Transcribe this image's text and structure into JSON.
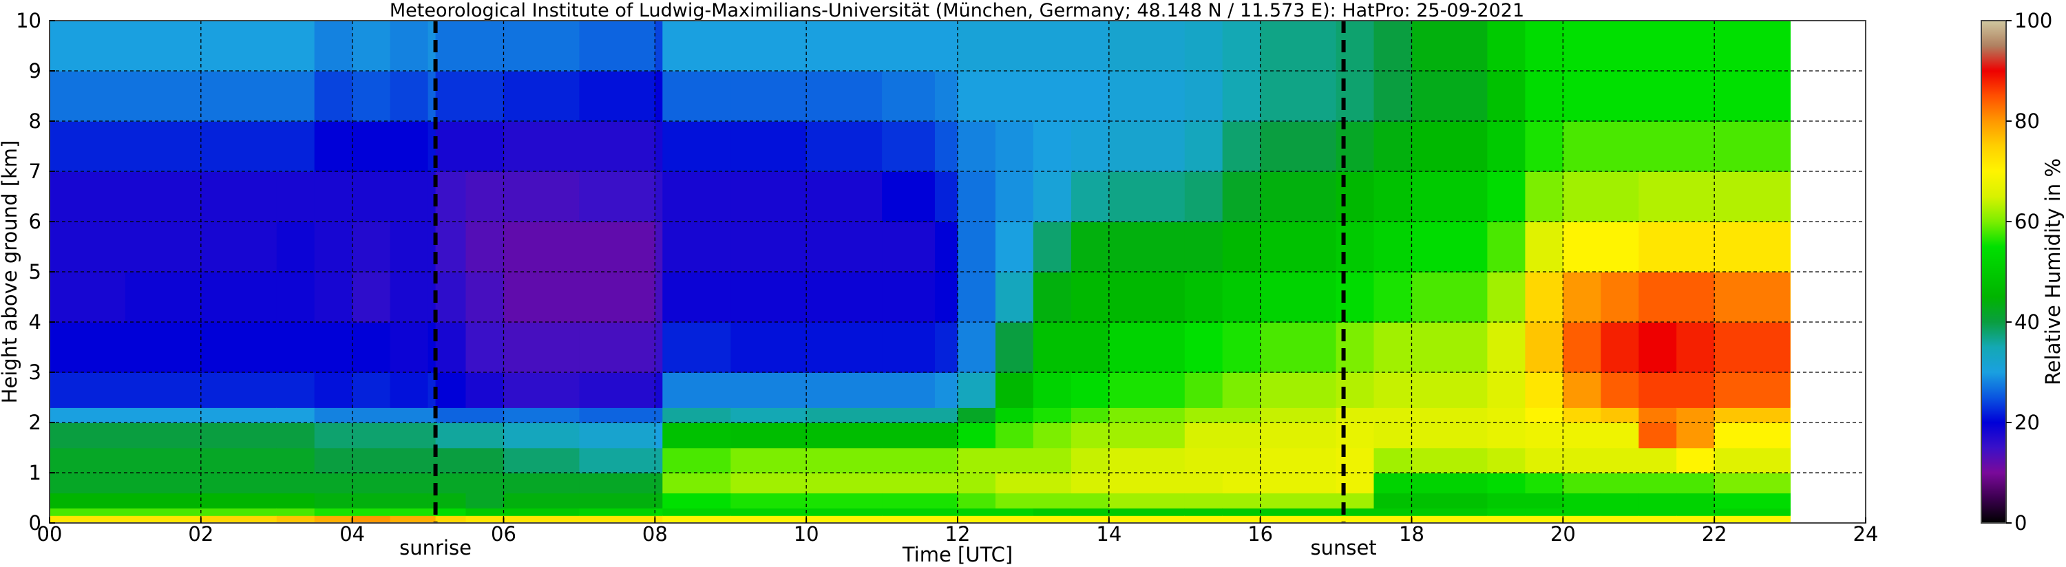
{
  "chart_data": {
    "type": "heatmap",
    "title": "Meteorological Institute of Ludwig-Maximilians-Universität (München, Germany; 48.148 N / 11.573 E):    HatPro: 25-09-2021",
    "xlabel": "Time [UTC]",
    "ylabel": "Height above ground [km]",
    "colorbar_label": "Relative Humidity in %",
    "xlim": [
      0,
      24
    ],
    "ylim": [
      0,
      10
    ],
    "clim": [
      0,
      100
    ],
    "data_extent_hours": [
      0,
      23
    ],
    "x_ticks": [
      "00",
      "02",
      "04",
      "06",
      "08",
      "10",
      "12",
      "14",
      "16",
      "18",
      "20",
      "22",
      "24"
    ],
    "y_ticks": [
      "0",
      "1",
      "2",
      "3",
      "4",
      "5",
      "6",
      "7",
      "8",
      "9",
      "10"
    ],
    "colorbar_ticks": [
      "0",
      "20",
      "40",
      "60",
      "80",
      "100"
    ],
    "grid": true,
    "markers": [
      {
        "label": "sunrise",
        "time": 5.1
      },
      {
        "label": "sunset",
        "time": 17.1
      }
    ],
    "colormap": [
      [
        0,
        "#000000"
      ],
      [
        5,
        "#3c0050"
      ],
      [
        10,
        "#7a0a9a"
      ],
      [
        15,
        "#3a10c8"
      ],
      [
        20,
        "#0000d8"
      ],
      [
        25,
        "#0a55e0"
      ],
      [
        30,
        "#1aa0e0"
      ],
      [
        35,
        "#14a8b4"
      ],
      [
        40,
        "#0a9e40"
      ],
      [
        45,
        "#00b400"
      ],
      [
        55,
        "#00e000"
      ],
      [
        60,
        "#7cee00"
      ],
      [
        65,
        "#d8f200"
      ],
      [
        70,
        "#fff400"
      ],
      [
        75,
        "#ffd000"
      ],
      [
        80,
        "#ff9800"
      ],
      [
        85,
        "#ff5000"
      ],
      [
        90,
        "#ee0000"
      ],
      [
        95,
        "#b08060"
      ],
      [
        100,
        "#d0c8a0"
      ]
    ],
    "time_hours": [
      0,
      1,
      2,
      3,
      3.5,
      4,
      4.5,
      5,
      5.1,
      5.5,
      6,
      7,
      8,
      8.1,
      9,
      10,
      11,
      11.7,
      12,
      12.5,
      13,
      13.5,
      14,
      15,
      15.5,
      16,
      17,
      17.5,
      18,
      19,
      19.5,
      20,
      20.5,
      21,
      21.5,
      22,
      23
    ],
    "height_km": [
      0,
      0.15,
      0.3,
      0.6,
      1,
      1.5,
      2,
      2.3,
      3,
      4,
      5,
      6,
      7,
      8,
      9,
      10
    ],
    "humidity_percent": [
      [
        72,
        58,
        45,
        42,
        42,
        40,
        30,
        22,
        20,
        18,
        18,
        18,
        22,
        27,
        30,
        32
      ],
      [
        72,
        58,
        45,
        42,
        42,
        40,
        30,
        22,
        20,
        19,
        18,
        18,
        22,
        27,
        30,
        32
      ],
      [
        74,
        58,
        45,
        42,
        42,
        40,
        30,
        22,
        20,
        19,
        18,
        18,
        22,
        27,
        30,
        32
      ],
      [
        76,
        58,
        45,
        42,
        42,
        40,
        30,
        22,
        20,
        19,
        19,
        18,
        22,
        27,
        30,
        32
      ],
      [
        78,
        56,
        44,
        42,
        40,
        38,
        28,
        21,
        20,
        18,
        18,
        18,
        20,
        24,
        28,
        31
      ],
      [
        80,
        56,
        44,
        42,
        40,
        38,
        28,
        22,
        20,
        16,
        17,
        18,
        20,
        25,
        29,
        31
      ],
      [
        78,
        56,
        44,
        42,
        40,
        38,
        28,
        21,
        19,
        18,
        18,
        18,
        20,
        24,
        28,
        31
      ],
      [
        78,
        56,
        44,
        42,
        40,
        38,
        28,
        22,
        20,
        18,
        18,
        18,
        21,
        26,
        29,
        31
      ],
      [
        74,
        54,
        44,
        42,
        40,
        36,
        26,
        20,
        18,
        16,
        15,
        15,
        18,
        23,
        27,
        30
      ],
      [
        72,
        50,
        42,
        42,
        40,
        36,
        26,
        18,
        15,
        14,
        13,
        14,
        18,
        23,
        27,
        30
      ],
      [
        72,
        50,
        44,
        42,
        38,
        34,
        27,
        16,
        14,
        12,
        12,
        14,
        17,
        22,
        27,
        30
      ],
      [
        72,
        52,
        44,
        42,
        36,
        32,
        26,
        17,
        14,
        12,
        12,
        15,
        17,
        21,
        26,
        30
      ],
      [
        72,
        54,
        44,
        42,
        36,
        30,
        26,
        18,
        15,
        14,
        14,
        16,
        18,
        20,
        24,
        28
      ],
      [
        70,
        52,
        55,
        60,
        58,
        48,
        36,
        28,
        22,
        19,
        18,
        18,
        21,
        26,
        30,
        32
      ],
      [
        70,
        52,
        56,
        62,
        60,
        47,
        35,
        28,
        21,
        19,
        18,
        18,
        21,
        26,
        30,
        32
      ],
      [
        70,
        52,
        56,
        62,
        60,
        47,
        36,
        28,
        21,
        19,
        18,
        18,
        22,
        26,
        30,
        32
      ],
      [
        70,
        52,
        56,
        62,
        60,
        47,
        36,
        28,
        21,
        19,
        18,
        20,
        23,
        27,
        30,
        32
      ],
      [
        70,
        52,
        56,
        62,
        60,
        47,
        36,
        29,
        22,
        20,
        20,
        22,
        25,
        28,
        30,
        32
      ],
      [
        70,
        52,
        58,
        62,
        62,
        54,
        42,
        34,
        28,
        27,
        27,
        27,
        28,
        30,
        31,
        33
      ],
      [
        70,
        52,
        60,
        64,
        62,
        58,
        52,
        46,
        40,
        34,
        30,
        29,
        29,
        30,
        31,
        33
      ],
      [
        70,
        50,
        60,
        64,
        62,
        60,
        56,
        52,
        48,
        44,
        38,
        31,
        30,
        30,
        31,
        33
      ],
      [
        70,
        50,
        60,
        65,
        64,
        62,
        58,
        54,
        48,
        46,
        44,
        36,
        31,
        30,
        31,
        33
      ],
      [
        70,
        50,
        62,
        66,
        65,
        62,
        60,
        56,
        52,
        46,
        44,
        37,
        32,
        31,
        32,
        34
      ],
      [
        70,
        50,
        62,
        66,
        66,
        65,
        62,
        58,
        55,
        48,
        44,
        38,
        34,
        32,
        33,
        35
      ],
      [
        70,
        50,
        62,
        67,
        66,
        65,
        62,
        60,
        56,
        50,
        46,
        42,
        38,
        35,
        35,
        36
      ],
      [
        70,
        50,
        62,
        67,
        67,
        66,
        64,
        62,
        58,
        52,
        48,
        44,
        40,
        37,
        37,
        38
      ],
      [
        70,
        50,
        62,
        68,
        68,
        67,
        66,
        63,
        60,
        54,
        50,
        46,
        42,
        38,
        38,
        39
      ],
      [
        70,
        50,
        48,
        52,
        62,
        66,
        66,
        64,
        62,
        56,
        52,
        48,
        44,
        40,
        40,
        42
      ],
      [
        70,
        50,
        48,
        52,
        63,
        66,
        66,
        64,
        62,
        58,
        54,
        50,
        46,
        43,
        44,
        46
      ],
      [
        70,
        52,
        50,
        54,
        64,
        67,
        67,
        66,
        65,
        62,
        58,
        54,
        50,
        48,
        50,
        52
      ],
      [
        70,
        52,
        50,
        56,
        66,
        68,
        70,
        72,
        76,
        74,
        66,
        60,
        56,
        54,
        54,
        56
      ],
      [
        70,
        52,
        52,
        58,
        66,
        68,
        74,
        80,
        84,
        80,
        70,
        62,
        58,
        55,
        55,
        56
      ],
      [
        70,
        52,
        52,
        58,
        66,
        68,
        76,
        84,
        88,
        82,
        70,
        62,
        58,
        55,
        55,
        56
      ],
      [
        70,
        52,
        52,
        58,
        66,
        84,
        82,
        86,
        90,
        84,
        72,
        63,
        58,
        55,
        55,
        56
      ],
      [
        70,
        52,
        52,
        58,
        70,
        80,
        80,
        86,
        88,
        84,
        72,
        63,
        58,
        55,
        55,
        56
      ],
      [
        70,
        52,
        54,
        60,
        66,
        70,
        76,
        84,
        86,
        82,
        72,
        63,
        58,
        55,
        55,
        56
      ],
      [
        70,
        52,
        54,
        60,
        66,
        68,
        72,
        78,
        82,
        78,
        70,
        62,
        58,
        55,
        55,
        56
      ]
    ]
  }
}
